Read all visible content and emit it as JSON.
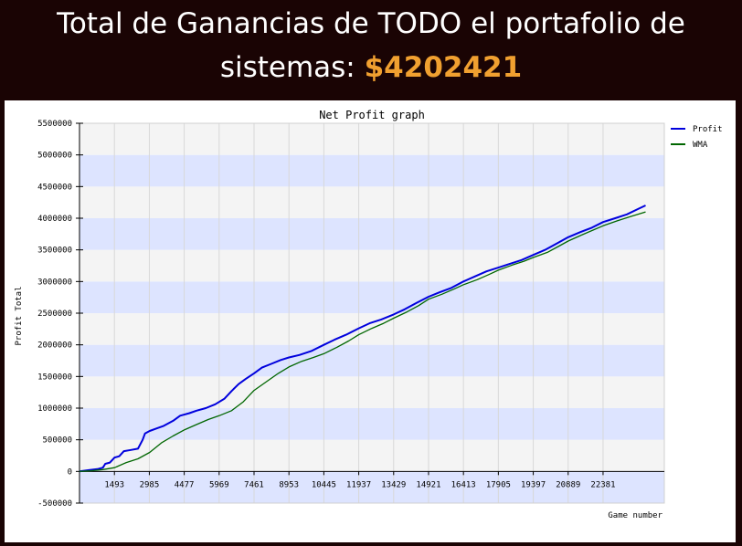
{
  "header": {
    "line1": "Total de Ganancias de TODO el portafolio de",
    "line2_prefix": "sistemas: ",
    "amount": "$4202421",
    "amount_color": "#f0a030",
    "background_color": "#1a0404"
  },
  "chart_data": {
    "type": "line",
    "title": "Net Profit graph",
    "xlabel": "Game number",
    "ylabel": "Profit Total",
    "xlim": [
      0,
      25000
    ],
    "ylim": [
      -500000,
      5500000
    ],
    "x_ticks": [
      1493,
      2985,
      4477,
      5969,
      7461,
      8953,
      10445,
      11937,
      13429,
      14921,
      16413,
      17905,
      19397,
      20889,
      22381
    ],
    "y_ticks": [
      -500000,
      0,
      500000,
      1000000,
      1500000,
      2000000,
      2500000,
      3000000,
      3500000,
      4000000,
      4500000,
      5000000,
      5500000
    ],
    "grid": true,
    "band_colors": [
      "#dde4ff",
      "#f4f4f4"
    ],
    "legend_position": "right",
    "series": [
      {
        "name": "Profit",
        "color": "#0000dd",
        "x": [
          0,
          400,
          800,
          1000,
          1100,
          1300,
          1500,
          1700,
          1900,
          2200,
          2500,
          2700,
          2800,
          3000,
          3300,
          3600,
          4000,
          4300,
          4700,
          5000,
          5400,
          5800,
          6200,
          6500,
          6800,
          7100,
          7461,
          7800,
          8200,
          8600,
          8953,
          9400,
          9900,
          10445,
          10900,
          11400,
          11937,
          12400,
          12900,
          13429,
          13900,
          14400,
          14921,
          15400,
          15900,
          16413,
          16900,
          17400,
          17905,
          18400,
          18900,
          19397,
          19900,
          20400,
          20889,
          21400,
          21900,
          22381,
          22900,
          23400,
          23900,
          24200
        ],
        "y": [
          0,
          20000,
          40000,
          60000,
          120000,
          140000,
          220000,
          240000,
          320000,
          340000,
          360000,
          500000,
          600000,
          640000,
          680000,
          720000,
          800000,
          880000,
          920000,
          960000,
          1000000,
          1060000,
          1150000,
          1270000,
          1380000,
          1460000,
          1550000,
          1640000,
          1700000,
          1760000,
          1800000,
          1840000,
          1900000,
          2000000,
          2080000,
          2160000,
          2260000,
          2340000,
          2400000,
          2480000,
          2560000,
          2660000,
          2760000,
          2830000,
          2900000,
          3000000,
          3080000,
          3160000,
          3220000,
          3280000,
          3340000,
          3420000,
          3500000,
          3600000,
          3700000,
          3780000,
          3850000,
          3940000,
          4000000,
          4060000,
          4150000,
          4202421
        ]
      },
      {
        "name": "WMA",
        "color": "#006600",
        "x": [
          0,
          500,
          1000,
          1500,
          2000,
          2500,
          3000,
          3500,
          4000,
          4500,
          5000,
          5500,
          5969,
          6500,
          7000,
          7461,
          8000,
          8500,
          8953,
          9500,
          10000,
          10445,
          11000,
          11500,
          11937,
          12500,
          13000,
          13429,
          14000,
          14500,
          14921,
          15500,
          16000,
          16413,
          17000,
          17500,
          17905,
          18500,
          19000,
          19397,
          20000,
          20500,
          20889,
          21500,
          22000,
          22381,
          23000,
          23500,
          24200
        ],
        "y": [
          0,
          10000,
          30000,
          60000,
          140000,
          200000,
          300000,
          450000,
          560000,
          660000,
          740000,
          820000,
          880000,
          960000,
          1100000,
          1280000,
          1420000,
          1550000,
          1650000,
          1740000,
          1800000,
          1860000,
          1960000,
          2060000,
          2160000,
          2260000,
          2340000,
          2420000,
          2520000,
          2620000,
          2720000,
          2800000,
          2880000,
          2950000,
          3030000,
          3110000,
          3180000,
          3260000,
          3320000,
          3380000,
          3460000,
          3560000,
          3640000,
          3740000,
          3820000,
          3880000,
          3960000,
          4020000,
          4100000
        ]
      }
    ]
  }
}
